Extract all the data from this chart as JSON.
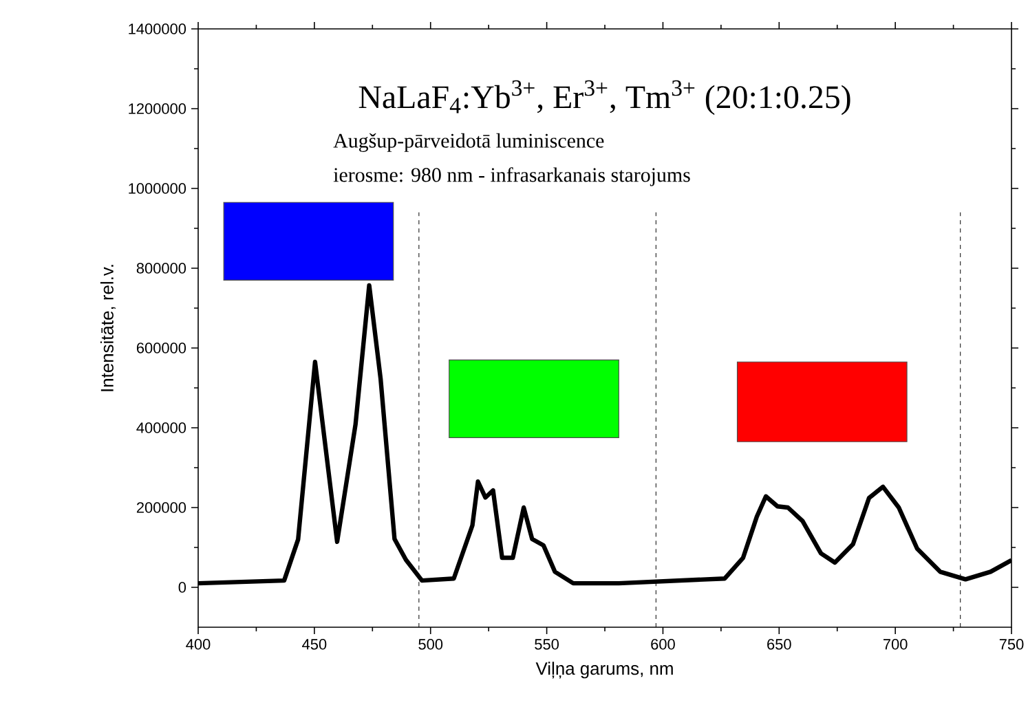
{
  "chart_data": {
    "type": "line",
    "title": "NaLaF$_{4}$:Yb$^{3+}$, Er$^{3+}$, Tm$^{3+}$ (20:1:0.25)",
    "annotations": [
      "Augšup-pārveidotā luminiscence",
      "ierosme: 980 nm - infrasarkanais starojums"
    ],
    "xlabel": "Viļņa garums, nm",
    "ylabel": "Intensitāte, rel.v.",
    "x": [
      400,
      437,
      443,
      450.3,
      459.8,
      467.7,
      473.6,
      478.5,
      484.5,
      489.4,
      496.3,
      510,
      518,
      520.4,
      523.6,
      526.9,
      530.8,
      535.4,
      540.1,
      543.7,
      548.6,
      553.5,
      561.4,
      581,
      626.6,
      634.5,
      640.4,
      644.3,
      649.3,
      653.8,
      660.1,
      668,
      674,
      681.8,
      688.7,
      694.7,
      701.5,
      709.4,
      719.3,
      730.2,
      741,
      750
    ],
    "series": [
      {
        "color": "#000000",
        "values": [
          10000,
          17000,
          120000,
          565000,
          114000,
          408000,
          757000,
          523000,
          121000,
          69000,
          17000,
          22000,
          155000,
          265000,
          225000,
          243000,
          74000,
          74000,
          200000,
          121000,
          105000,
          39000,
          10000,
          10000,
          22000,
          74000,
          177000,
          228000,
          203000,
          200000,
          166000,
          85000,
          62000,
          108000,
          224000,
          252000,
          200000,
          97000,
          39000,
          20000,
          39000,
          68000
        ]
      }
    ],
    "xlim": [
      400,
      750
    ],
    "ylim": [
      -100000,
      1400000
    ],
    "xticks": [
      400,
      450,
      500,
      550,
      600,
      650,
      700,
      750
    ],
    "yticks": [
      0,
      200000,
      400000,
      600000,
      800000,
      1000000,
      1200000,
      1400000
    ],
    "ref_lines": [
      {
        "axis": "x",
        "value": 495,
        "line_style": "dashed"
      },
      {
        "axis": "x",
        "value": 597,
        "line_style": "dashed"
      },
      {
        "axis": "x",
        "value": 728,
        "line_style": "dashed"
      }
    ]
  }
}
